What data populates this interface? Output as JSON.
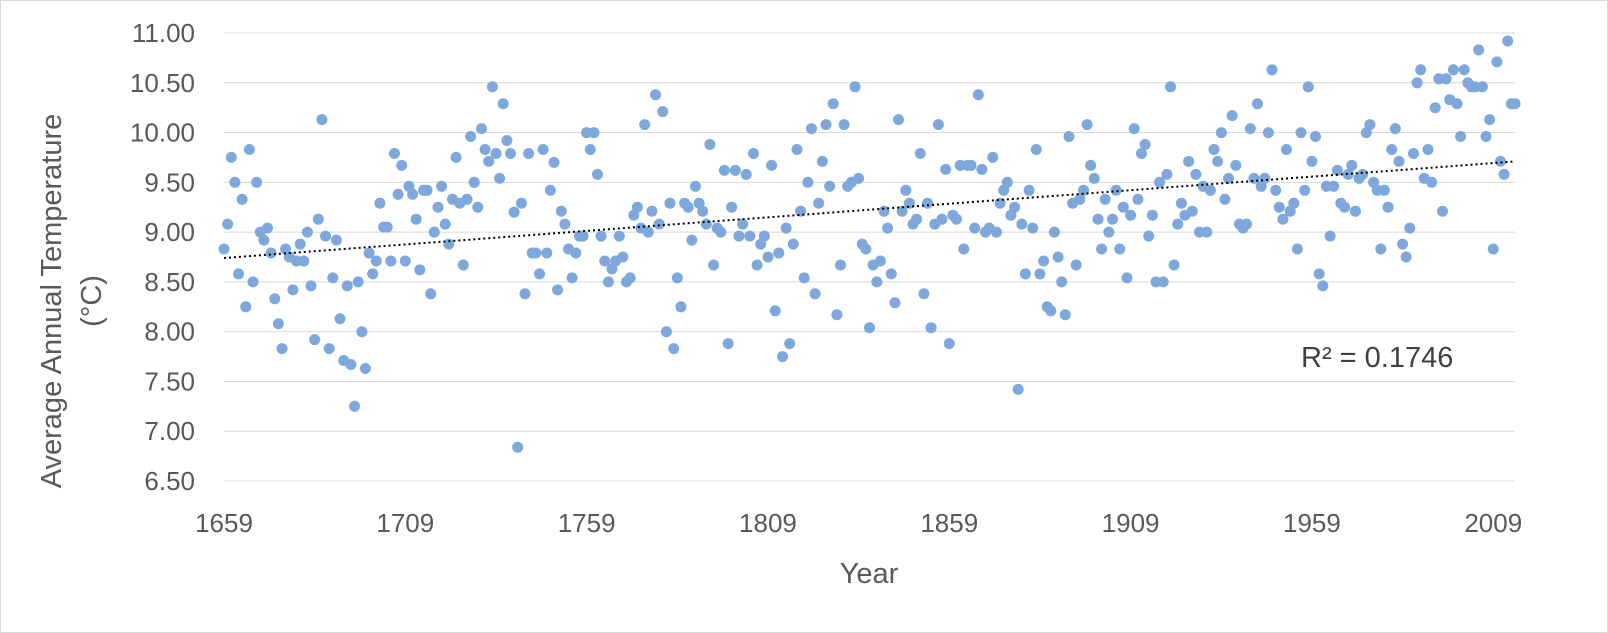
{
  "chart_data": {
    "type": "scatter",
    "title": "",
    "xlabel": "Year",
    "ylabel": "Average Annual Temperature (°C)",
    "ylabel_lines": [
      "Average Annual Temperature",
      "(°C)"
    ],
    "xlim": [
      1659,
      2015
    ],
    "ylim": [
      6.5,
      11.0
    ],
    "x_ticks": [
      1659,
      1709,
      1759,
      1809,
      1859,
      1909,
      1959,
      2009
    ],
    "y_ticks": [
      "6.50",
      "7.00",
      "7.50",
      "8.00",
      "8.50",
      "9.00",
      "9.50",
      "10.00",
      "10.50",
      "11.00"
    ],
    "grid": "horizontal",
    "marker_color": "#7ea7db",
    "trendline": {
      "type": "linear",
      "style": "dotted",
      "x": [
        1659,
        2015
      ],
      "y": [
        8.74,
        9.71
      ],
      "color": "#000000"
    },
    "annotation": "R² = 0.1746",
    "points": {
      "x": [
        1659,
        1660,
        1661,
        1662,
        1663,
        1664,
        1665,
        1666,
        1667,
        1668,
        1669,
        1670,
        1671,
        1672,
        1673,
        1674,
        1675,
        1676,
        1677,
        1678,
        1679,
        1680,
        1681,
        1682,
        1683,
        1684,
        1685,
        1686,
        1687,
        1688,
        1689,
        1690,
        1691,
        1692,
        1693,
        1694,
        1695,
        1696,
        1697,
        1698,
        1699,
        1700,
        1701,
        1702,
        1703,
        1704,
        1705,
        1706,
        1707,
        1708,
        1709,
        1710,
        1711,
        1712,
        1713,
        1714,
        1715,
        1716,
        1717,
        1718,
        1719,
        1720,
        1721,
        1722,
        1723,
        1724,
        1725,
        1726,
        1727,
        1728,
        1729,
        1730,
        1731,
        1732,
        1733,
        1734,
        1735,
        1736,
        1737,
        1738,
        1739,
        1740,
        1741,
        1742,
        1743,
        1744,
        1745,
        1746,
        1747,
        1748,
        1749,
        1750,
        1751,
        1752,
        1753,
        1754,
        1755,
        1756,
        1757,
        1758,
        1759,
        1760,
        1761,
        1762,
        1763,
        1764,
        1765,
        1766,
        1767,
        1768,
        1769,
        1770,
        1771,
        1772,
        1773,
        1774,
        1775,
        1776,
        1777,
        1778,
        1779,
        1780,
        1781,
        1782,
        1783,
        1784,
        1785,
        1786,
        1787,
        1788,
        1789,
        1790,
        1791,
        1792,
        1793,
        1794,
        1795,
        1796,
        1797,
        1798,
        1799,
        1800,
        1801,
        1802,
        1803,
        1804,
        1805,
        1806,
        1807,
        1808,
        1809,
        1810,
        1811,
        1812,
        1813,
        1814,
        1815,
        1816,
        1817,
        1818,
        1819,
        1820,
        1821,
        1822,
        1823,
        1824,
        1825,
        1826,
        1827,
        1828,
        1829,
        1830,
        1831,
        1832,
        1833,
        1834,
        1835,
        1836,
        1837,
        1838,
        1839,
        1840,
        1841,
        1842,
        1843,
        1844,
        1845,
        1846,
        1847,
        1848,
        1849,
        1850,
        1851,
        1852,
        1853,
        1854,
        1855,
        1856,
        1857,
        1858,
        1859,
        1860,
        1861,
        1862,
        1863,
        1864,
        1865,
        1866,
        1867,
        1868,
        1869,
        1870,
        1871,
        1872,
        1873,
        1874,
        1875,
        1876,
        1877,
        1878,
        1879,
        1880,
        1881,
        1882,
        1883,
        1884,
        1885,
        1886,
        1887,
        1888,
        1889,
        1890,
        1891,
        1892,
        1893,
        1894,
        1895,
        1896,
        1897,
        1898,
        1899,
        1900,
        1901,
        1902,
        1903,
        1904,
        1905,
        1906,
        1907,
        1908,
        1909,
        1910,
        1911,
        1912,
        1913,
        1914,
        1915,
        1916,
        1917,
        1918,
        1919,
        1920,
        1921,
        1922,
        1923,
        1924,
        1925,
        1926,
        1927,
        1928,
        1929,
        1930,
        1931,
        1932,
        1933,
        1934,
        1935,
        1936,
        1937,
        1938,
        1939,
        1940,
        1941,
        1942,
        1943,
        1944,
        1945,
        1946,
        1947,
        1948,
        1949,
        1950,
        1951,
        1952,
        1953,
        1954,
        1955,
        1956,
        1957,
        1958,
        1959,
        1960,
        1961,
        1962,
        1963,
        1964,
        1965,
        1966,
        1967,
        1968,
        1969,
        1970,
        1971,
        1972,
        1973,
        1974,
        1975,
        1976,
        1977,
        1978,
        1979,
        1980,
        1981,
        1982,
        1983,
        1984,
        1985,
        1986,
        1987,
        1988,
        1989,
        1990,
        1991,
        1992,
        1993,
        1994,
        1995,
        1996,
        1997,
        1998,
        1999,
        2000,
        2001,
        2002,
        2003,
        2004,
        2005,
        2006,
        2007,
        2008,
        2009,
        2010,
        2011,
        2012,
        2013,
        2014,
        2015
      ],
      "y": [
        8.83,
        9.08,
        9.75,
        9.5,
        8.58,
        9.33,
        8.25,
        9.83,
        8.5,
        9.5,
        9.0,
        8.92,
        9.04,
        8.79,
        8.33,
        8.08,
        7.83,
        8.83,
        8.75,
        8.42,
        8.71,
        8.88,
        8.71,
        9.0,
        8.46,
        7.92,
        9.13,
        10.13,
        8.96,
        7.83,
        8.54,
        8.92,
        8.13,
        7.71,
        8.46,
        7.67,
        7.25,
        8.5,
        8.0,
        7.63,
        8.79,
        8.58,
        8.71,
        9.29,
        9.05,
        9.05,
        8.71,
        9.79,
        9.38,
        9.67,
        8.71,
        9.46,
        9.38,
        9.13,
        8.62,
        9.42,
        9.42,
        8.38,
        9.0,
        9.25,
        9.46,
        9.08,
        8.88,
        9.33,
        9.75,
        9.29,
        8.67,
        9.33,
        9.96,
        9.5,
        9.25,
        10.04,
        9.83,
        9.71,
        10.46,
        9.79,
        9.54,
        10.29,
        9.92,
        9.79,
        9.2,
        6.84,
        9.29,
        8.38,
        9.79,
        8.79,
        8.79,
        8.58,
        9.83,
        8.79,
        9.42,
        9.7,
        8.42,
        9.21,
        9.08,
        8.83,
        8.54,
        8.79,
        8.96,
        8.96,
        10.0,
        9.83,
        10.0,
        9.58,
        8.96,
        8.71,
        8.5,
        8.63,
        8.71,
        8.96,
        8.75,
        8.5,
        8.54,
        9.17,
        9.25,
        9.04,
        10.08,
        9.0,
        9.21,
        10.38,
        9.08,
        10.21,
        8.0,
        9.29,
        7.83,
        8.54,
        8.25,
        9.29,
        9.25,
        8.92,
        9.46,
        9.29,
        9.21,
        9.08,
        9.88,
        8.67,
        9.04,
        9.0,
        9.62,
        7.88,
        9.25,
        9.62,
        8.96,
        9.08,
        9.58,
        8.96,
        9.79,
        8.67,
        8.88,
        8.96,
        8.75,
        9.67,
        8.21,
        8.79,
        7.75,
        9.04,
        7.88,
        8.88,
        9.83,
        9.21,
        8.54,
        9.5,
        10.04,
        8.38,
        9.29,
        9.71,
        10.08,
        9.46,
        10.29,
        8.17,
        8.67,
        10.08,
        9.46,
        9.5,
        10.46,
        9.54,
        8.88,
        8.83,
        8.04,
        8.67,
        8.5,
        8.71,
        9.21,
        9.04,
        8.58,
        8.29,
        10.13,
        9.21,
        9.42,
        9.29,
        9.08,
        9.13,
        9.79,
        8.38,
        9.29,
        8.04,
        9.08,
        10.08,
        9.13,
        9.63,
        7.88,
        9.17,
        9.13,
        9.67,
        8.83,
        9.67,
        9.67,
        9.04,
        10.38,
        9.63,
        9.0,
        9.04,
        9.75,
        9.0,
        9.29,
        9.42,
        9.5,
        9.17,
        9.25,
        7.42,
        9.08,
        8.58,
        9.42,
        9.04,
        9.83,
        8.58,
        8.71,
        8.25,
        8.21,
        9.0,
        8.75,
        8.5,
        8.17,
        9.96,
        9.29,
        8.67,
        9.33,
        9.42,
        10.08,
        9.67,
        9.54,
        9.13,
        8.83,
        9.33,
        9.0,
        9.13,
        9.42,
        8.83,
        9.25,
        8.54,
        9.17,
        10.04,
        9.33,
        9.79,
        9.88,
        8.96,
        9.17,
        8.5,
        9.5,
        8.5,
        9.58,
        10.46,
        8.67,
        9.08,
        9.29,
        9.17,
        9.71,
        9.21,
        9.58,
        9.0,
        9.46,
        9.0,
        9.42,
        9.83,
        9.71,
        10.0,
        9.33,
        9.54,
        10.17,
        9.67,
        9.08,
        9.04,
        9.08,
        10.04,
        9.54,
        10.29,
        9.46,
        9.54,
        10.0,
        10.63,
        9.42,
        9.25,
        9.13,
        9.83,
        9.21,
        9.29,
        8.83,
        10.0,
        9.42,
        10.46,
        9.71,
        9.96,
        8.58,
        8.46,
        9.46,
        8.96,
        9.46,
        9.62,
        9.29,
        9.25,
        9.58,
        9.67,
        9.21,
        9.54,
        9.58,
        10.0,
        10.08,
        9.5,
        9.42,
        8.83,
        9.42,
        9.25,
        9.83,
        10.04,
        9.71,
        8.88,
        8.75,
        9.04,
        9.79,
        10.5,
        10.63,
        9.54,
        9.83,
        9.5,
        10.25,
        10.54,
        9.21,
        10.54,
        10.33,
        10.63,
        10.29,
        9.96,
        10.63,
        10.5,
        10.46,
        10.46,
        10.83,
        10.46,
        9.96,
        10.13,
        8.83,
        10.71,
        9.71,
        9.58,
        10.92,
        10.29,
        10.29
      ]
    }
  }
}
